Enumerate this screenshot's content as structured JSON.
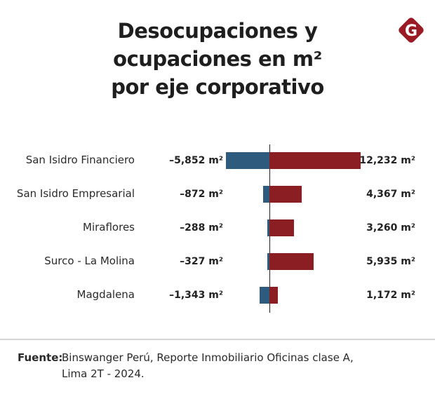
{
  "header": {
    "title_lines": [
      "Desocupaciones y",
      "ocupaciones en m²",
      "por eje corporativo"
    ],
    "logo_letter": "G",
    "logo_icon": "g-diamond-logo-icon"
  },
  "colors": {
    "negative": "#2e5a7e",
    "positive": "#8b1e22",
    "logo": "#9b1b24"
  },
  "chart_data": {
    "type": "bar",
    "orientation": "horizontal-diverging",
    "title": "Desocupaciones y ocupaciones en m² por eje corporativo",
    "unit": "m²",
    "categories": [
      "San Isidro Financiero",
      "San Isidro Empresarial",
      "Miraflores",
      "Surco - La Molina",
      "Magdalena"
    ],
    "series": [
      {
        "name": "Desocupaciones",
        "values": [
          -5852,
          -872,
          -288,
          -327,
          -1343
        ]
      },
      {
        "name": "Ocupaciones",
        "values": [
          12232,
          4367,
          3260,
          5935,
          1172
        ]
      }
    ],
    "negative_labels": [
      "–5,852 m²",
      "–872 m²",
      "–288 m²",
      "–327 m²",
      "–1,343 m²"
    ],
    "positive_labels": [
      "12,232 m²",
      "4,367 m²",
      "3,260 m²",
      "5,935 m²",
      "1,172 m²"
    ],
    "xlabel": "",
    "ylabel": "",
    "grid": false,
    "legend": "none"
  },
  "footer": {
    "source_label": "Fuente:",
    "source_line1": "Binswanger Perú, Reporte Inmobiliario Oficinas clase A,",
    "source_line2": "Lima 2T - 2024."
  }
}
